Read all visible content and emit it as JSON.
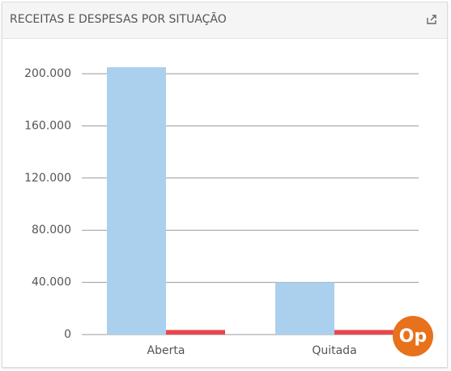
{
  "chart_data": {
    "type": "bar",
    "title": "RECEITAS E DESPESAS POR SITUAÇÃO",
    "categories": [
      "Aberta",
      "Quitada"
    ],
    "series": [
      {
        "color": "#abd0ee",
        "values": [
          205000,
          40000
        ]
      },
      {
        "color": "#e8474f",
        "values": [
          3500,
          3500
        ]
      }
    ],
    "ylim": [
      0,
      200000
    ],
    "yticks": [
      0,
      {
        "value": 40000,
        "label": "40.000"
      },
      {
        "value": 80000,
        "label": "80.000"
      },
      {
        "value": 120000,
        "label": "120.000"
      },
      {
        "value": 160000,
        "label": "160.000"
      },
      {
        "value": 200000,
        "label": "200.000"
      }
    ],
    "grid": true
  }
}
